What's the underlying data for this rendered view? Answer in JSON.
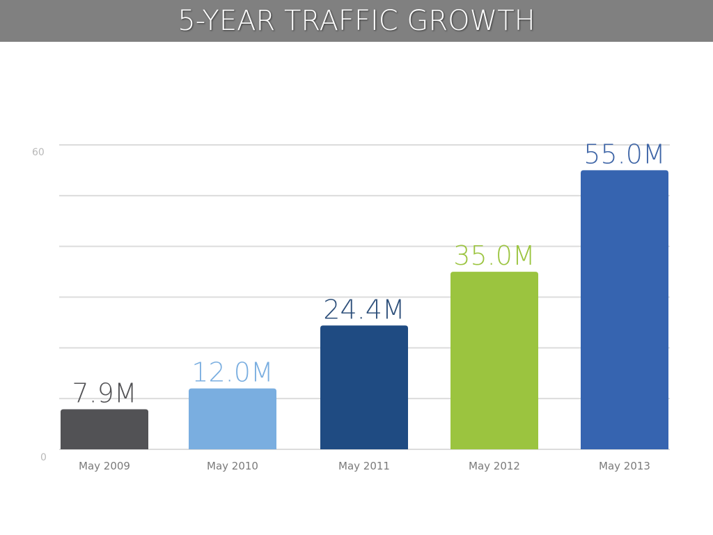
{
  "header": {
    "title": "5-YEAR TRAFFIC GROWTH"
  },
  "chart_data": {
    "type": "bar",
    "title": "5-YEAR TRAFFIC GROWTH",
    "xlabel": "",
    "ylabel": "",
    "ylim": [
      0,
      60
    ],
    "grid": true,
    "y_ticks": [
      "0",
      "60"
    ],
    "grid_step": 10,
    "categories": [
      "May 2009",
      "May 2010",
      "May 2011",
      "May 2012",
      "May 2013"
    ],
    "values": [
      7.9,
      12.0,
      24.4,
      35.0,
      55.0
    ],
    "data_labels": [
      "7.9M",
      "12.0M",
      "24.4M",
      "35.0M",
      "55.0M"
    ],
    "colors": [
      "#525255",
      "#7aaee0",
      "#1f4b82",
      "#9bc43f",
      "#3664b0"
    ],
    "label_colors": [
      "#525255",
      "#7aaee0",
      "#2d4f7a",
      "#9bc43f",
      "#3d64a6"
    ]
  }
}
